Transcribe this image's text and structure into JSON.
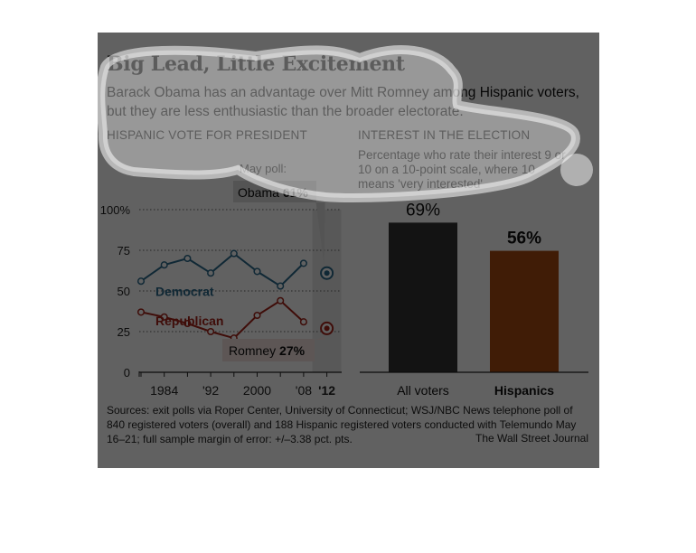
{
  "title": "Big Lead, Little Excitement",
  "subtitle": "Barack Obama has an advantage over Mitt Romney among Hispanic voters, but they are less enthusiastic than the broader electorate.",
  "colors": {
    "democrat": "#2c6b8c",
    "republican": "#a5231a",
    "all_voters_bar": "#333333",
    "hispanics_bar": "#a94a12",
    "latest_band": "#e6e6e6"
  },
  "chart_data": [
    {
      "type": "line",
      "title": "HISPANIC VOTE FOR PRESIDENT",
      "x": [
        1980,
        1984,
        1988,
        1992,
        1996,
        2000,
        2004,
        2008
      ],
      "x_tick_labels": [
        "1984",
        "'92",
        "2000",
        "'08",
        "'12"
      ],
      "y_tick_labels": [
        "100%",
        "75",
        "50",
        "25",
        "0"
      ],
      "ylim": [
        0,
        100
      ],
      "grid": "dotted horizontal lines",
      "series": [
        {
          "name": "Democrat",
          "values": [
            56,
            66,
            70,
            61,
            73,
            62,
            53,
            67
          ]
        },
        {
          "name": "Republican",
          "values": [
            37,
            34,
            30,
            25,
            21,
            35,
            44,
            31
          ]
        }
      ],
      "poll_2012": {
        "label": "May poll:",
        "obama_label": "Obama",
        "obama_value": "61%",
        "obama": 61,
        "romney_label": "Romney",
        "romney_value": "27%",
        "romney": 27
      }
    },
    {
      "type": "bar",
      "title": "INTEREST IN THE ELECTION",
      "note": "Percentage who rate their interest 9 or 10 on a 10-point scale, where 10 means 'very interested'",
      "categories": [
        "All voters",
        "Hispanics"
      ],
      "values": [
        69,
        56
      ],
      "value_labels": [
        "69%",
        "56%"
      ]
    }
  ],
  "source": "Sources: exit polls via Roper Center, University of Connecticut; WSJ/NBC News telephone poll of 840 registered voters (overall) and 188 Hispanic registered voters conducted with Telemundo May 16–21; full sample margin of error: +/–3.38 pct. pts.",
  "credit": "The Wall Street Journal"
}
